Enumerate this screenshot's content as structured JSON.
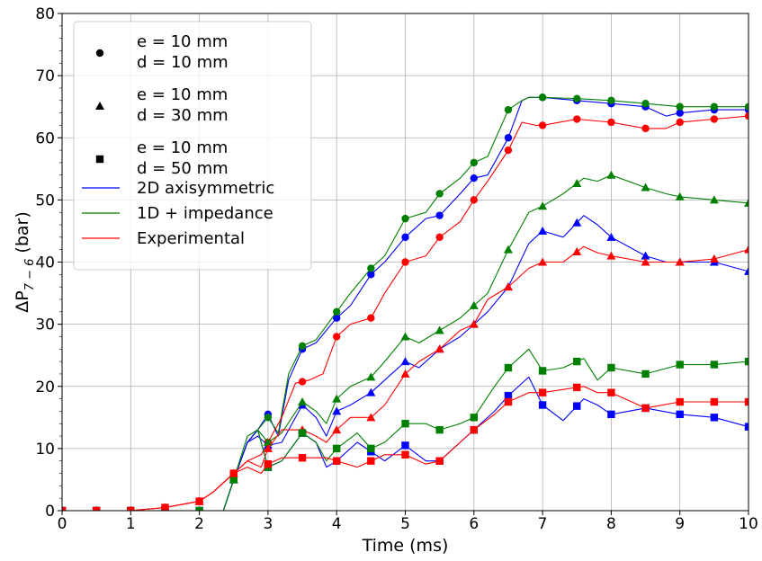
{
  "chart_data": {
    "type": "line",
    "xlabel": "Time (ms)",
    "ylabel": "ΔP7 − 6 (bar)",
    "ylabel_main": "ΔP",
    "ylabel_sub": "7 − 6",
    "ylabel_unit": " (bar)",
    "xlim": [
      0,
      10
    ],
    "ylim": [
      0,
      80
    ],
    "x_ticks": [
      "0",
      "1",
      "2",
      "3",
      "4",
      "5",
      "6",
      "7",
      "8",
      "9",
      "10"
    ],
    "y_ticks": [
      "0",
      "10",
      "20",
      "30",
      "40",
      "50",
      "60",
      "70",
      "80"
    ],
    "grid": true,
    "legend_position": "top-left",
    "legend": {
      "markers": [
        {
          "symbol": "circle",
          "line1": "e = 10 mm",
          "line2": "d = 10 mm"
        },
        {
          "symbol": "triangle",
          "line1": "e = 10 mm",
          "line2": "d = 30 mm"
        },
        {
          "symbol": "square",
          "line1": "e = 10 mm",
          "line2": "d = 50 mm"
        }
      ],
      "lines": [
        {
          "label": "2D axisymmetric",
          "color": "#0000ff"
        },
        {
          "label": "1D + impedance",
          "color": "#008000"
        },
        {
          "label": "Experimental",
          "color": "#ff0000"
        }
      ]
    },
    "series": [
      {
        "model": "2D axisymmetric",
        "case": "d = 10 mm",
        "color": "#0000ff",
        "marker": "circle",
        "x": [
          0,
          1,
          1.5,
          2,
          2.35,
          2.5,
          2.7,
          2.85,
          3.0,
          3.15,
          3.3,
          3.5,
          3.7,
          4.0,
          4.2,
          4.5,
          4.7,
          5.0,
          5.3,
          5.5,
          5.8,
          6.0,
          6.2,
          6.5,
          6.7,
          6.8,
          7.0,
          7.5,
          8.0,
          8.5,
          8.8,
          9.0,
          9.5,
          10.0
        ],
        "y": [
          0,
          0,
          0,
          0,
          0,
          5,
          11,
          13,
          15.5,
          12,
          21,
          26,
          27,
          31,
          33,
          38,
          40,
          44,
          47,
          47.5,
          51,
          53.5,
          54,
          60,
          66,
          66.5,
          66.5,
          66,
          65.5,
          65,
          63.5,
          64,
          64.5,
          64.5
        ]
      },
      {
        "model": "1D + impedance",
        "case": "d = 10 mm",
        "color": "#008000",
        "marker": "circle",
        "x": [
          0,
          1,
          1.5,
          2,
          2.35,
          2.5,
          2.7,
          2.85,
          3.0,
          3.15,
          3.3,
          3.5,
          3.7,
          4.0,
          4.2,
          4.5,
          4.7,
          5.0,
          5.3,
          5.5,
          5.8,
          6.0,
          6.2,
          6.5,
          6.7,
          6.8,
          7.0,
          7.5,
          8.0,
          8.5,
          9.0,
          9.5,
          10.0
        ],
        "y": [
          0,
          0,
          0,
          0,
          0,
          5,
          11,
          13,
          15,
          12.5,
          22,
          26.5,
          27.5,
          32,
          35,
          39,
          41,
          47,
          48,
          51,
          53.5,
          56,
          57,
          64.5,
          66,
          66.5,
          66.5,
          66.3,
          66,
          65.5,
          65,
          65,
          65
        ]
      },
      {
        "model": "Experimental",
        "case": "d = 10 mm",
        "color": "#ff0000",
        "marker": "circle",
        "x": [
          0,
          1,
          1.5,
          2,
          2.2,
          2.5,
          2.7,
          2.9,
          3.0,
          3.2,
          3.4,
          3.6,
          3.8,
          4.0,
          4.2,
          4.5,
          4.7,
          5.0,
          5.3,
          5.5,
          5.8,
          6.0,
          6.2,
          6.5,
          6.7,
          6.9,
          7.0,
          7.5,
          8.0,
          8.5,
          8.8,
          9.0,
          9.5,
          10.0
        ],
        "y": [
          0,
          0,
          0.5,
          1.5,
          3,
          6,
          8,
          9,
          11,
          15,
          20.5,
          21,
          22,
          28,
          30,
          31,
          35,
          40,
          41,
          44,
          46.5,
          50,
          53,
          58,
          62.5,
          62,
          62,
          63,
          62.5,
          61.5,
          61.5,
          62.5,
          63,
          63.5
        ]
      },
      {
        "model": "2D axisymmetric",
        "case": "d = 30 mm",
        "color": "#0000ff",
        "marker": "triangle",
        "x": [
          0,
          1,
          1.5,
          2,
          2.35,
          2.5,
          2.7,
          2.85,
          3.0,
          3.2,
          3.5,
          3.7,
          3.85,
          4.0,
          4.2,
          4.5,
          4.7,
          5.0,
          5.2,
          5.5,
          5.8,
          6.0,
          6.2,
          6.5,
          6.8,
          7.0,
          7.3,
          7.6,
          7.8,
          8.0,
          8.5,
          8.8,
          9.0,
          9.5,
          10.0
        ],
        "y": [
          0,
          0,
          0,
          0,
          0,
          5,
          11,
          12,
          10.5,
          11,
          17,
          15,
          12,
          16,
          17,
          19,
          21,
          24,
          23,
          26,
          28,
          30,
          32,
          36,
          43,
          45,
          44,
          47.5,
          46,
          44,
          41,
          40,
          40,
          40,
          38.5
        ]
      },
      {
        "model": "1D + impedance",
        "case": "d = 30 mm",
        "color": "#008000",
        "marker": "triangle",
        "x": [
          0,
          1,
          1.5,
          2,
          2.35,
          2.5,
          2.7,
          2.85,
          3.0,
          3.2,
          3.5,
          3.7,
          3.85,
          4.0,
          4.2,
          4.5,
          4.7,
          5.0,
          5.2,
          5.5,
          5.8,
          6.0,
          6.2,
          6.5,
          6.8,
          7.0,
          7.3,
          7.6,
          7.8,
          8.0,
          8.5,
          8.8,
          9.0,
          9.5,
          10.0
        ],
        "y": [
          0,
          0,
          0,
          0,
          0,
          5,
          11,
          13,
          11,
          12.5,
          17.5,
          16,
          14,
          18,
          20,
          21.5,
          24,
          28,
          27,
          29,
          31,
          33,
          35,
          42,
          48,
          49,
          51,
          53.5,
          53,
          54,
          52,
          51,
          50.5,
          50,
          49.5
        ]
      },
      {
        "model": "Experimental",
        "case": "d = 30 mm",
        "color": "#ff0000",
        "marker": "triangle",
        "x": [
          0,
          1,
          1.5,
          2,
          2.2,
          2.5,
          2.7,
          2.9,
          3.0,
          3.2,
          3.5,
          3.7,
          3.85,
          4.0,
          4.2,
          4.5,
          4.7,
          5.0,
          5.2,
          5.5,
          5.8,
          6.0,
          6.2,
          6.5,
          6.8,
          7.0,
          7.3,
          7.6,
          7.8,
          8.0,
          8.5,
          9.0,
          9.5,
          10.0
        ],
        "y": [
          0,
          0,
          0.5,
          1.5,
          3,
          6,
          8,
          7,
          10,
          13,
          13,
          12,
          11,
          13,
          15,
          15,
          17,
          22,
          24,
          26,
          29,
          30,
          34,
          36,
          39,
          40,
          40,
          42.5,
          41.5,
          41,
          40,
          40,
          40.5,
          42
        ]
      },
      {
        "model": "2D axisymmetric",
        "case": "d = 50 mm",
        "color": "#0000ff",
        "marker": "square",
        "x": [
          0,
          1,
          1.5,
          2,
          2.35,
          2.5,
          2.7,
          2.85,
          3.0,
          3.2,
          3.5,
          3.7,
          3.85,
          4.0,
          4.3,
          4.5,
          4.7,
          5.0,
          5.3,
          5.5,
          5.8,
          6.0,
          6.3,
          6.5,
          6.8,
          7.0,
          7.3,
          7.6,
          7.8,
          8.0,
          8.5,
          9.0,
          9.5,
          10.0
        ],
        "y": [
          0,
          0,
          0,
          0,
          0,
          5,
          11,
          13,
          7,
          8,
          12.5,
          11,
          7,
          8,
          11,
          9.5,
          8,
          10.5,
          8,
          8,
          11,
          13,
          16,
          18.5,
          21.5,
          17,
          14.5,
          18,
          17,
          15.5,
          16.5,
          15.5,
          15,
          13.5
        ]
      },
      {
        "model": "1D + impedance",
        "case": "d = 50 mm",
        "color": "#008000",
        "marker": "square",
        "x": [
          0,
          1,
          1.5,
          2,
          2.35,
          2.5,
          2.7,
          2.85,
          3.0,
          3.2,
          3.5,
          3.7,
          3.85,
          4.0,
          4.3,
          4.5,
          4.7,
          5.0,
          5.3,
          5.5,
          5.8,
          6.0,
          6.3,
          6.5,
          6.8,
          7.0,
          7.3,
          7.6,
          7.8,
          8.0,
          8.5,
          9.0,
          9.5,
          10.0
        ],
        "y": [
          0,
          0,
          0,
          0,
          0,
          5,
          12,
          13,
          7,
          8,
          12.5,
          11,
          8,
          10,
          12.5,
          10,
          11,
          14,
          14,
          13,
          14,
          15,
          20,
          23,
          26,
          22.5,
          23,
          24.5,
          21,
          23,
          22,
          23.5,
          23.5,
          24
        ]
      },
      {
        "model": "Experimental",
        "case": "d = 50 mm",
        "color": "#ff0000",
        "marker": "square",
        "x": [
          0,
          1,
          1.5,
          2,
          2.2,
          2.5,
          2.7,
          2.9,
          3.0,
          3.2,
          3.5,
          3.7,
          3.85,
          4.0,
          4.3,
          4.5,
          4.7,
          5.0,
          5.3,
          5.5,
          5.8,
          6.0,
          6.3,
          6.5,
          6.8,
          7.0,
          7.3,
          7.6,
          7.8,
          8.0,
          8.5,
          9.0,
          9.5,
          10.0
        ],
        "y": [
          0,
          0,
          0.5,
          1.5,
          3,
          6,
          7,
          6,
          7.5,
          8.5,
          8.5,
          8.5,
          8.5,
          8,
          7,
          8,
          9,
          9,
          7.5,
          8,
          11,
          13,
          15.5,
          17.5,
          19,
          19,
          19.5,
          20,
          19,
          19,
          16.5,
          17.5,
          17.5,
          17.5
        ]
      }
    ]
  }
}
